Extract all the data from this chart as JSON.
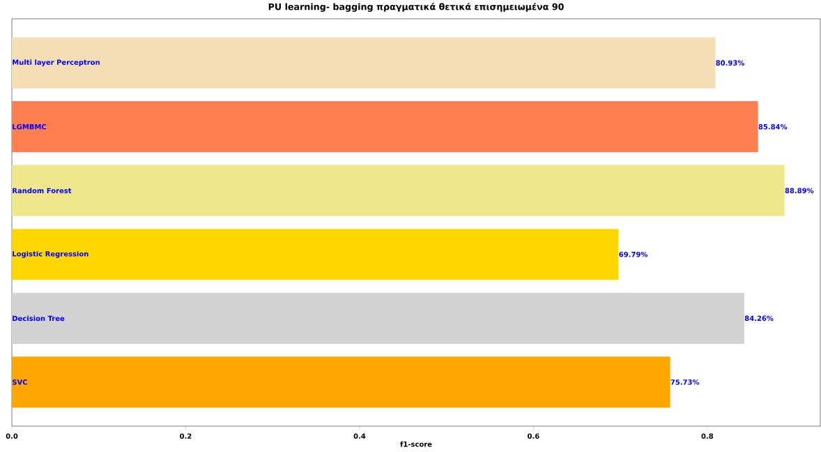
{
  "chart_data": {
    "type": "bar",
    "orientation": "horizontal",
    "title": "PU learning- bagging πραγματικά θετικά επισημειωμένα 90",
    "xlabel": "f1-score",
    "categories": [
      "Multi layer Perceptron",
      "LGMBMC",
      "Random Forest",
      "Logistic Regression",
      "Decision Tree",
      "SVC"
    ],
    "values": [
      0.8093,
      0.8584,
      0.8889,
      0.6979,
      0.8426,
      0.7573
    ],
    "colors": [
      "#f5deb3",
      "#ff7f50",
      "#f0e68c",
      "#ffd700",
      "#d3d3d3",
      "#ffa500"
    ],
    "value_labels": [
      "80.93%",
      "85.84%",
      "88.89%",
      "69.79%",
      "84.26%",
      "75.73%"
    ],
    "xlim": [
      0,
      0.93
    ],
    "xticks": [
      {
        "value": 0,
        "label": "0.0"
      },
      0.2,
      0.4,
      0.6,
      0.8
    ]
  }
}
